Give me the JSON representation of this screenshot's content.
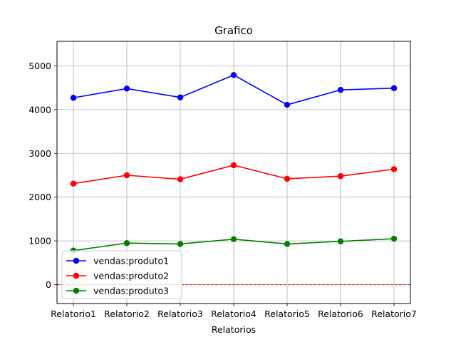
{
  "chart_data": {
    "type": "line",
    "title": "Grafico",
    "xlabel": "Relatorios",
    "ylabel": "",
    "categories": [
      "Relatorio1",
      "Relatorio2",
      "Relatorio3",
      "Relatorio4",
      "Relatorio5",
      "Relatorio6",
      "Relatorio7"
    ],
    "ylim": [
      -430,
      5560
    ],
    "yticks": [
      0,
      1000,
      2000,
      3000,
      4000,
      5000
    ],
    "grid": true,
    "legend_position": "lower-left",
    "series": [
      {
        "name": "vendas:produto1",
        "color": "#0000ff",
        "values": [
          4270,
          4480,
          4280,
          4790,
          4110,
          4450,
          4490
        ]
      },
      {
        "name": "vendas:produto2",
        "color": "#ff0000",
        "values": [
          2310,
          2500,
          2410,
          2730,
          2420,
          2480,
          2640
        ]
      },
      {
        "name": "vendas:produto3",
        "color": "#008000",
        "values": [
          780,
          950,
          930,
          1040,
          930,
          990,
          1050
        ]
      }
    ],
    "reference_line": {
      "y": 0,
      "color": "#ff0000",
      "style": "dashed"
    }
  }
}
